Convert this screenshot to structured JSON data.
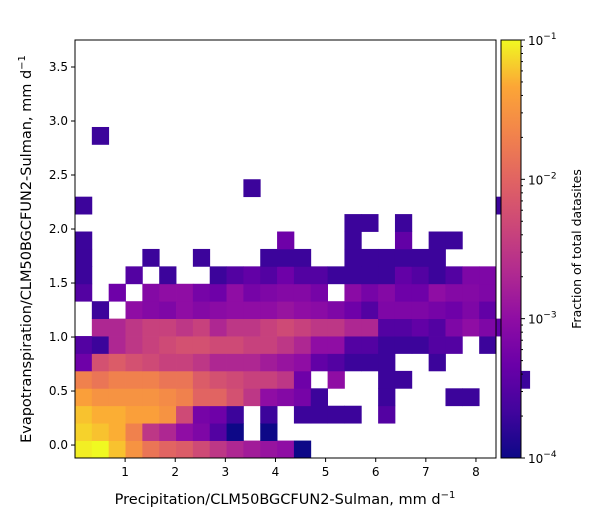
{
  "chart_data": {
    "type": "heatmap",
    "title": "",
    "xlabel": "Precipitation/CLM50BGCFUN2-Sulman,  mm d",
    "xlabel_sup": "−1",
    "ylabel": "Evapotranspiration/CLM50BGCFUN2-Sulman,  mm d",
    "ylabel_sup": "−1",
    "xlim": [
      0,
      8.4
    ],
    "ylim": [
      -0.12,
      3.75
    ],
    "x_ticks": [
      1,
      2,
      3,
      4,
      5,
      6,
      7,
      8
    ],
    "y_ticks": [
      0.0,
      0.5,
      1.0,
      1.5,
      2.0,
      2.5,
      3.0,
      3.5
    ],
    "x_tick_labels": [
      "1",
      "2",
      "3",
      "4",
      "5",
      "6",
      "7",
      "8"
    ],
    "y_tick_labels": [
      "0.0",
      "0.5",
      "1.0",
      "1.5",
      "2.0",
      "2.5",
      "3.0",
      "3.5"
    ],
    "bin_width_x": 0.336,
    "bin_height_y": 0.1613,
    "colormap": "plasma",
    "log_scale": true,
    "colorbar": {
      "label": "Fraction of total datasites",
      "min": 0.0001,
      "max": 0.1,
      "tick_labels": [
        {
          "base": "10",
          "exp": "−4"
        },
        {
          "base": "10",
          "exp": "−3"
        },
        {
          "base": "10",
          "exp": "−2"
        },
        {
          "base": "10",
          "exp": "−1"
        }
      ]
    },
    "grid": false,
    "rows": [
      {
        "r": 0,
        "c0": 0,
        "v": [
          0.09,
          0.1,
          0.06,
          0.03,
          0.015,
          0.01,
          0.008,
          0.005,
          0.003,
          0.002,
          0.0015,
          0.0012,
          0.001,
          0.0001
        ]
      },
      {
        "r": 1,
        "c0": 0,
        "v": [
          0.07,
          0.06,
          0.05,
          0.02,
          0.003,
          0.002,
          0.001,
          0.0007,
          0.0003,
          0.0001,
          null,
          0.0001
        ]
      },
      {
        "r": 2,
        "c0": 0,
        "v": [
          0.06,
          0.05,
          0.05,
          0.04,
          0.04,
          0.03,
          0.005,
          0.0006,
          0.0005,
          0.0002,
          null,
          0.0002,
          null,
          0.0002,
          0.0002,
          0.0002,
          0.0002,
          null,
          0.0003
        ]
      },
      {
        "r": 3,
        "c0": 0,
        "v": [
          0.04,
          0.03,
          0.03,
          0.03,
          0.03,
          0.025,
          0.02,
          0.01,
          0.01,
          0.006,
          0.003,
          0.001,
          0.0008,
          0.0006,
          0.0002,
          null,
          null,
          null,
          0.0002,
          null,
          null,
          null,
          0.0002,
          0.0002
        ]
      },
      {
        "r": 4,
        "c0": 0,
        "v": [
          0.02,
          0.015,
          0.02,
          0.02,
          0.02,
          0.015,
          0.015,
          0.008,
          0.006,
          0.005,
          0.004,
          0.004,
          0.003,
          0.0005,
          null,
          0.001,
          null,
          null,
          0.0002,
          0.0002,
          null,
          null,
          null,
          null,
          null,
          null,
          0.0002
        ]
      },
      {
        "r": 5,
        "c0": 0,
        "v": [
          0.0005,
          0.006,
          0.008,
          0.006,
          0.005,
          0.004,
          0.004,
          0.003,
          0.002,
          0.002,
          0.002,
          0.0015,
          0.0012,
          0.001,
          0.0004,
          0.0003,
          0.0002,
          0.0002,
          0.0002,
          null,
          null,
          0.0002
        ]
      },
      {
        "r": 6,
        "c0": 0,
        "v": [
          0.0003,
          0.0002,
          0.002,
          0.003,
          0.004,
          0.005,
          0.006,
          0.006,
          0.005,
          0.005,
          0.004,
          0.004,
          0.003,
          0.002,
          0.001,
          0.001,
          0.0003,
          0.0003,
          0.0002,
          0.0002,
          0.0002,
          0.0003,
          0.0003,
          null,
          0.0002
        ]
      },
      {
        "r": 7,
        "c0": 1,
        "v": [
          0.002,
          0.002,
          0.003,
          0.004,
          0.004,
          0.003,
          0.004,
          0.002,
          0.003,
          0.003,
          0.004,
          0.005,
          0.004,
          0.003,
          0.003,
          0.002,
          0.002,
          0.0003,
          0.0003,
          0.0004,
          0.0003,
          0.0007,
          0.001,
          0.0007,
          0.0004
        ]
      },
      {
        "r": 8,
        "c0": 1,
        "v": [
          0.0002,
          null,
          0.001,
          0.0008,
          0.0007,
          0.001,
          0.0008,
          0.0009,
          0.001,
          0.001,
          0.001,
          0.0012,
          0.001,
          0.0009,
          0.0007,
          0.0005,
          0.0003,
          0.0007,
          0.0007,
          0.0007,
          0.0006,
          0.0005,
          0.0007,
          0.0004
        ]
      },
      {
        "r": 9,
        "c0": 0,
        "v": [
          0.0003,
          null,
          0.0005,
          null,
          0.0008,
          0.001,
          0.001,
          0.0006,
          0.0005,
          0.001,
          0.0006,
          0.0007,
          0.0008,
          0.0008,
          0.0006,
          null,
          0.0009,
          0.0006,
          0.0008,
          0.0005,
          0.0005,
          0.001,
          0.0008,
          0.0008,
          0.0007
        ]
      },
      {
        "r": 10,
        "c0": 0,
        "v": [
          0.0002,
          null,
          null,
          0.0003,
          null,
          0.0002,
          null,
          null,
          0.0002,
          0.0003,
          0.0004,
          0.0003,
          0.0005,
          0.0003,
          0.0003,
          0.0002,
          0.0002,
          0.0002,
          0.0002,
          0.0004,
          0.0003,
          0.0002,
          0.0003,
          0.0007,
          0.0007
        ]
      },
      {
        "r": 11,
        "c0": 0,
        "v": [
          0.0002,
          null,
          null,
          null,
          0.0002,
          null,
          null,
          0.0002,
          null,
          null,
          null,
          0.0002,
          0.0002,
          0.0002,
          null,
          null,
          0.0002,
          0.0002,
          0.0002,
          0.0002,
          0.0002,
          0.0002
        ]
      },
      {
        "r": 12,
        "c0": 0,
        "v": [
          0.0002,
          null,
          null,
          null,
          null,
          null,
          null,
          null,
          null,
          null,
          null,
          null,
          0.0005,
          null,
          null,
          null,
          0.0002,
          null,
          null,
          0.0004,
          null,
          0.0002,
          0.0002
        ]
      },
      {
        "r": 13,
        "c0": 16,
        "v": [
          0.0002,
          0.0002,
          null,
          0.0002
        ]
      },
      {
        "r": 14,
        "c0": 0,
        "v": [
          0.0002,
          null,
          null,
          null,
          null,
          null,
          null,
          null,
          null,
          null,
          null,
          null,
          null,
          null,
          null,
          null,
          null,
          null,
          null,
          null,
          null,
          null,
          null,
          null,
          null,
          0.0002
        ]
      },
      {
        "r": 15,
        "c0": 10,
        "v": [
          0.0002
        ]
      },
      {
        "r": 18,
        "c0": 1,
        "v": [
          0.0002
        ]
      }
    ]
  }
}
